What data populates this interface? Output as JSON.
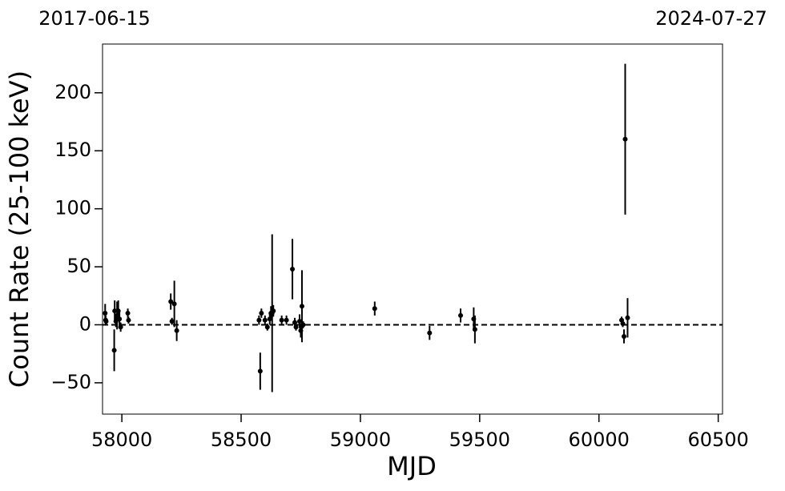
{
  "chart_data": {
    "type": "errorbar",
    "top_left_label": "2017-06-15",
    "top_right_label": "2024-07-27",
    "xlabel": "MJD",
    "ylabel": "Count Rate (25-100 keV)",
    "xlim": [
      57919,
      60518
    ],
    "ylim": [
      -77,
      242
    ],
    "xticks": [
      58000,
      58500,
      59000,
      59500,
      60000,
      60500
    ],
    "yticks": [
      {
        "value": -50,
        "label": "−50"
      },
      0,
      50,
      100,
      150,
      200
    ],
    "reference_line": 0,
    "series": [
      {
        "color": "#000000",
        "x": [
          57930,
          57932,
          57934,
          57968,
          57970,
          57975,
          57980,
          57985,
          57990,
          57995,
          58025,
          58028,
          58205,
          58210,
          58220,
          58230,
          58575,
          58580,
          58585,
          58600,
          58610,
          58620,
          58625,
          58630,
          58635,
          58670,
          58690,
          58715,
          58725,
          58730,
          58745,
          58750,
          58755,
          58760,
          59060,
          59290,
          59420,
          59475,
          59480,
          60095,
          60100,
          60105,
          60110,
          60120
        ],
        "values": [
          10,
          4,
          3,
          -22,
          12,
          3,
          8,
          12,
          5,
          -2,
          10,
          4,
          20,
          3,
          18,
          -5,
          4,
          -40,
          10,
          4,
          -2,
          5,
          10,
          10,
          12,
          4,
          4,
          48,
          2,
          -2,
          3,
          -5,
          16,
          0,
          14,
          -7,
          8,
          5,
          -4,
          4,
          1,
          -10,
          160,
          6
        ],
        "errors": [
          8,
          4,
          3,
          18,
          9,
          5,
          12,
          9,
          6,
          4,
          4,
          3,
          7,
          3,
          20,
          9,
          4,
          16,
          4,
          4,
          3,
          5,
          6,
          68,
          5,
          4,
          4,
          26,
          4,
          3,
          6,
          6,
          31,
          3,
          6,
          6,
          6,
          10,
          12,
          3,
          3,
          6,
          65,
          17
        ]
      }
    ]
  }
}
